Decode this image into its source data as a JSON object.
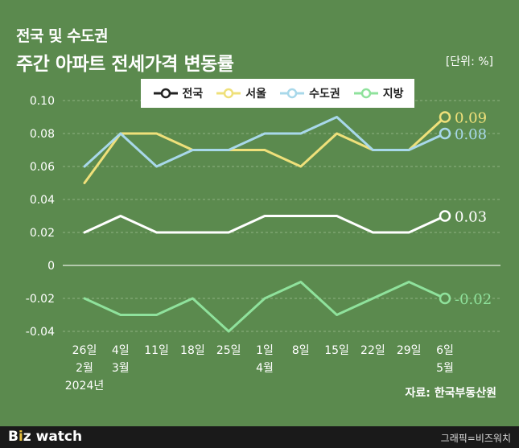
{
  "header": {
    "title_line1": "전국 및 수도권",
    "title_line2": "주간 아파트 전세가격 변동률",
    "unit": "[단위: %]"
  },
  "source": "자료: 한국부동산원",
  "footer": {
    "logo_b": "B",
    "logo_dot": "i",
    "logo_z": "z",
    "logo_watch": " watch",
    "credit": "그래픽=비즈워치"
  },
  "colors": {
    "background": "#5b8a4e",
    "nation": "#ffffff",
    "seoul": "#efe07a",
    "metro": "#a8d8ea",
    "regional": "#8fe29c"
  },
  "chart_data": {
    "type": "line",
    "title": "주간 아파트 전세가격 변동률",
    "ylabel": "",
    "xlabel": "",
    "ylim": [
      -0.04,
      0.1
    ],
    "yticks": [
      "0.10",
      "0.08",
      "0.06",
      "0.04",
      "0.02",
      "0",
      "-0.02",
      "-0.04"
    ],
    "yticks_values": [
      0.1,
      0.08,
      0.06,
      0.04,
      0.02,
      0,
      -0.02,
      -0.04
    ],
    "grid": true,
    "legend_position": "top",
    "categories": [
      {
        "day": "26일",
        "month": "2월",
        "year": "2024년"
      },
      {
        "day": "4일",
        "month": "3월",
        "year": ""
      },
      {
        "day": "11일",
        "month": "",
        "year": ""
      },
      {
        "day": "18일",
        "month": "",
        "year": ""
      },
      {
        "day": "25일",
        "month": "",
        "year": ""
      },
      {
        "day": "1일",
        "month": "4월",
        "year": ""
      },
      {
        "day": "8일",
        "month": "",
        "year": ""
      },
      {
        "day": "15일",
        "month": "",
        "year": ""
      },
      {
        "day": "22일",
        "month": "",
        "year": ""
      },
      {
        "day": "29일",
        "month": "",
        "year": ""
      },
      {
        "day": "6일",
        "month": "5월",
        "year": ""
      }
    ],
    "series": [
      {
        "name": "전국",
        "key": "nation",
        "values": [
          0.02,
          0.03,
          0.02,
          0.02,
          0.02,
          0.03,
          0.03,
          0.03,
          0.02,
          0.02,
          0.03
        ],
        "end_label": "0.03"
      },
      {
        "name": "서울",
        "key": "seoul",
        "values": [
          0.05,
          0.08,
          0.08,
          0.07,
          0.07,
          0.07,
          0.06,
          0.08,
          0.07,
          0.07,
          0.09
        ],
        "end_label": "0.09"
      },
      {
        "name": "수도권",
        "key": "metro",
        "values": [
          0.06,
          0.08,
          0.06,
          0.07,
          0.07,
          0.08,
          0.08,
          0.09,
          0.07,
          0.07,
          0.08
        ],
        "end_label": "0.08"
      },
      {
        "name": "지방",
        "key": "regional",
        "values": [
          -0.02,
          -0.03,
          -0.03,
          -0.02,
          -0.04,
          -0.02,
          -0.01,
          -0.03,
          -0.02,
          -0.01,
          -0.02
        ],
        "end_label": "-0.02"
      }
    ]
  }
}
